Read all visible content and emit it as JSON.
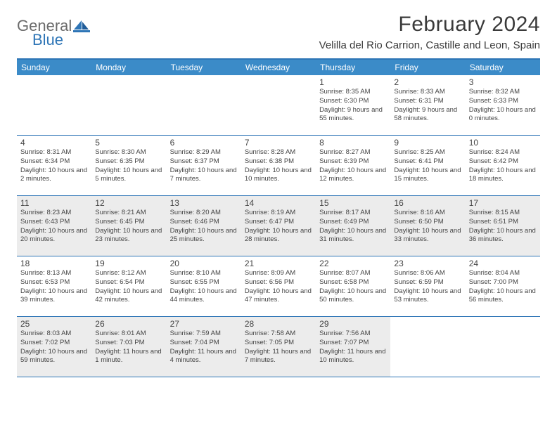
{
  "logo": {
    "word1": "General",
    "word2": "Blue"
  },
  "title": "February 2024",
  "location": "Velilla del Rio Carrion, Castille and Leon, Spain",
  "colors": {
    "header_bg": "#3b8bc8",
    "border": "#2e75b6",
    "shaded_bg": "#ececec",
    "text": "#444444",
    "title_text": "#3a3a3a",
    "logo_gray": "#6b6b6b",
    "logo_blue": "#2e75b6"
  },
  "fonts": {
    "title_size": 30,
    "location_size": 15,
    "weekday_size": 12,
    "daynum_size": 12,
    "body_size": 9.5
  },
  "weekdays": [
    "Sunday",
    "Monday",
    "Tuesday",
    "Wednesday",
    "Thursday",
    "Friday",
    "Saturday"
  ],
  "weeks": [
    {
      "shaded": false,
      "cells": [
        {
          "day": "",
          "sunrise": "",
          "sunset": "",
          "daylight": ""
        },
        {
          "day": "",
          "sunrise": "",
          "sunset": "",
          "daylight": ""
        },
        {
          "day": "",
          "sunrise": "",
          "sunset": "",
          "daylight": ""
        },
        {
          "day": "",
          "sunrise": "",
          "sunset": "",
          "daylight": ""
        },
        {
          "day": "1",
          "sunrise": "Sunrise: 8:35 AM",
          "sunset": "Sunset: 6:30 PM",
          "daylight": "Daylight: 9 hours and 55 minutes."
        },
        {
          "day": "2",
          "sunrise": "Sunrise: 8:33 AM",
          "sunset": "Sunset: 6:31 PM",
          "daylight": "Daylight: 9 hours and 58 minutes."
        },
        {
          "day": "3",
          "sunrise": "Sunrise: 8:32 AM",
          "sunset": "Sunset: 6:33 PM",
          "daylight": "Daylight: 10 hours and 0 minutes."
        }
      ]
    },
    {
      "shaded": false,
      "cells": [
        {
          "day": "4",
          "sunrise": "Sunrise: 8:31 AM",
          "sunset": "Sunset: 6:34 PM",
          "daylight": "Daylight: 10 hours and 2 minutes."
        },
        {
          "day": "5",
          "sunrise": "Sunrise: 8:30 AM",
          "sunset": "Sunset: 6:35 PM",
          "daylight": "Daylight: 10 hours and 5 minutes."
        },
        {
          "day": "6",
          "sunrise": "Sunrise: 8:29 AM",
          "sunset": "Sunset: 6:37 PM",
          "daylight": "Daylight: 10 hours and 7 minutes."
        },
        {
          "day": "7",
          "sunrise": "Sunrise: 8:28 AM",
          "sunset": "Sunset: 6:38 PM",
          "daylight": "Daylight: 10 hours and 10 minutes."
        },
        {
          "day": "8",
          "sunrise": "Sunrise: 8:27 AM",
          "sunset": "Sunset: 6:39 PM",
          "daylight": "Daylight: 10 hours and 12 minutes."
        },
        {
          "day": "9",
          "sunrise": "Sunrise: 8:25 AM",
          "sunset": "Sunset: 6:41 PM",
          "daylight": "Daylight: 10 hours and 15 minutes."
        },
        {
          "day": "10",
          "sunrise": "Sunrise: 8:24 AM",
          "sunset": "Sunset: 6:42 PM",
          "daylight": "Daylight: 10 hours and 18 minutes."
        }
      ]
    },
    {
      "shaded": true,
      "cells": [
        {
          "day": "11",
          "sunrise": "Sunrise: 8:23 AM",
          "sunset": "Sunset: 6:43 PM",
          "daylight": "Daylight: 10 hours and 20 minutes."
        },
        {
          "day": "12",
          "sunrise": "Sunrise: 8:21 AM",
          "sunset": "Sunset: 6:45 PM",
          "daylight": "Daylight: 10 hours and 23 minutes."
        },
        {
          "day": "13",
          "sunrise": "Sunrise: 8:20 AM",
          "sunset": "Sunset: 6:46 PM",
          "daylight": "Daylight: 10 hours and 25 minutes."
        },
        {
          "day": "14",
          "sunrise": "Sunrise: 8:19 AM",
          "sunset": "Sunset: 6:47 PM",
          "daylight": "Daylight: 10 hours and 28 minutes."
        },
        {
          "day": "15",
          "sunrise": "Sunrise: 8:17 AM",
          "sunset": "Sunset: 6:49 PM",
          "daylight": "Daylight: 10 hours and 31 minutes."
        },
        {
          "day": "16",
          "sunrise": "Sunrise: 8:16 AM",
          "sunset": "Sunset: 6:50 PM",
          "daylight": "Daylight: 10 hours and 33 minutes."
        },
        {
          "day": "17",
          "sunrise": "Sunrise: 8:15 AM",
          "sunset": "Sunset: 6:51 PM",
          "daylight": "Daylight: 10 hours and 36 minutes."
        }
      ]
    },
    {
      "shaded": false,
      "cells": [
        {
          "day": "18",
          "sunrise": "Sunrise: 8:13 AM",
          "sunset": "Sunset: 6:53 PM",
          "daylight": "Daylight: 10 hours and 39 minutes."
        },
        {
          "day": "19",
          "sunrise": "Sunrise: 8:12 AM",
          "sunset": "Sunset: 6:54 PM",
          "daylight": "Daylight: 10 hours and 42 minutes."
        },
        {
          "day": "20",
          "sunrise": "Sunrise: 8:10 AM",
          "sunset": "Sunset: 6:55 PM",
          "daylight": "Daylight: 10 hours and 44 minutes."
        },
        {
          "day": "21",
          "sunrise": "Sunrise: 8:09 AM",
          "sunset": "Sunset: 6:56 PM",
          "daylight": "Daylight: 10 hours and 47 minutes."
        },
        {
          "day": "22",
          "sunrise": "Sunrise: 8:07 AM",
          "sunset": "Sunset: 6:58 PM",
          "daylight": "Daylight: 10 hours and 50 minutes."
        },
        {
          "day": "23",
          "sunrise": "Sunrise: 8:06 AM",
          "sunset": "Sunset: 6:59 PM",
          "daylight": "Daylight: 10 hours and 53 minutes."
        },
        {
          "day": "24",
          "sunrise": "Sunrise: 8:04 AM",
          "sunset": "Sunset: 7:00 PM",
          "daylight": "Daylight: 10 hours and 56 minutes."
        }
      ]
    },
    {
      "shaded": true,
      "cells": [
        {
          "day": "25",
          "sunrise": "Sunrise: 8:03 AM",
          "sunset": "Sunset: 7:02 PM",
          "daylight": "Daylight: 10 hours and 59 minutes."
        },
        {
          "day": "26",
          "sunrise": "Sunrise: 8:01 AM",
          "sunset": "Sunset: 7:03 PM",
          "daylight": "Daylight: 11 hours and 1 minute."
        },
        {
          "day": "27",
          "sunrise": "Sunrise: 7:59 AM",
          "sunset": "Sunset: 7:04 PM",
          "daylight": "Daylight: 11 hours and 4 minutes."
        },
        {
          "day": "28",
          "sunrise": "Sunrise: 7:58 AM",
          "sunset": "Sunset: 7:05 PM",
          "daylight": "Daylight: 11 hours and 7 minutes."
        },
        {
          "day": "29",
          "sunrise": "Sunrise: 7:56 AM",
          "sunset": "Sunset: 7:07 PM",
          "daylight": "Daylight: 11 hours and 10 minutes."
        },
        {
          "day": "",
          "sunrise": "",
          "sunset": "",
          "daylight": ""
        },
        {
          "day": "",
          "sunrise": "",
          "sunset": "",
          "daylight": ""
        }
      ]
    }
  ]
}
